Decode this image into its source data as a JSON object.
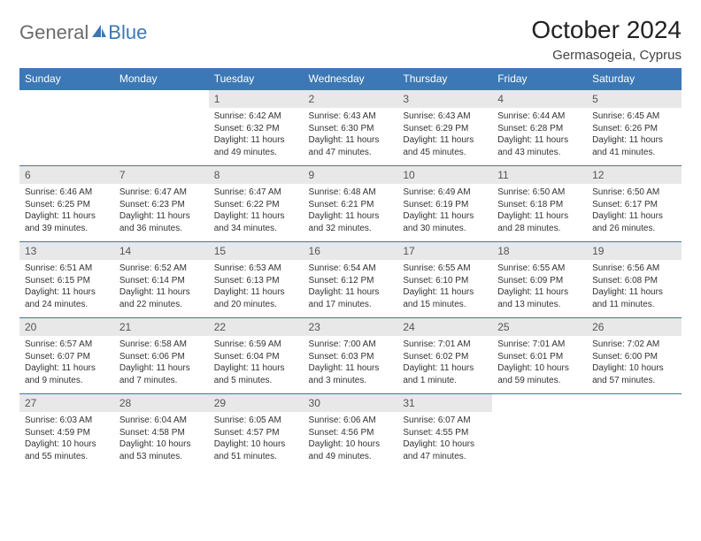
{
  "brand": {
    "word1": "General",
    "word2": "Blue",
    "color_gray": "#6b6b6b",
    "color_blue": "#3b78b5"
  },
  "title": "October 2024",
  "location": "Germasogeia, Cyprus",
  "header_bg": "#3b78b5",
  "header_fg": "#ffffff",
  "daynum_bg": "#e8e8e8",
  "row_border": "#3b78b5",
  "weekdays": [
    "Sunday",
    "Monday",
    "Tuesday",
    "Wednesday",
    "Thursday",
    "Friday",
    "Saturday"
  ],
  "first_weekday_index": 2,
  "days_in_month": 31,
  "days": {
    "1": {
      "sunrise": "6:42 AM",
      "sunset": "6:32 PM",
      "daylight": "11 hours and 49 minutes."
    },
    "2": {
      "sunrise": "6:43 AM",
      "sunset": "6:30 PM",
      "daylight": "11 hours and 47 minutes."
    },
    "3": {
      "sunrise": "6:43 AM",
      "sunset": "6:29 PM",
      "daylight": "11 hours and 45 minutes."
    },
    "4": {
      "sunrise": "6:44 AM",
      "sunset": "6:28 PM",
      "daylight": "11 hours and 43 minutes."
    },
    "5": {
      "sunrise": "6:45 AM",
      "sunset": "6:26 PM",
      "daylight": "11 hours and 41 minutes."
    },
    "6": {
      "sunrise": "6:46 AM",
      "sunset": "6:25 PM",
      "daylight": "11 hours and 39 minutes."
    },
    "7": {
      "sunrise": "6:47 AM",
      "sunset": "6:23 PM",
      "daylight": "11 hours and 36 minutes."
    },
    "8": {
      "sunrise": "6:47 AM",
      "sunset": "6:22 PM",
      "daylight": "11 hours and 34 minutes."
    },
    "9": {
      "sunrise": "6:48 AM",
      "sunset": "6:21 PM",
      "daylight": "11 hours and 32 minutes."
    },
    "10": {
      "sunrise": "6:49 AM",
      "sunset": "6:19 PM",
      "daylight": "11 hours and 30 minutes."
    },
    "11": {
      "sunrise": "6:50 AM",
      "sunset": "6:18 PM",
      "daylight": "11 hours and 28 minutes."
    },
    "12": {
      "sunrise": "6:50 AM",
      "sunset": "6:17 PM",
      "daylight": "11 hours and 26 minutes."
    },
    "13": {
      "sunrise": "6:51 AM",
      "sunset": "6:15 PM",
      "daylight": "11 hours and 24 minutes."
    },
    "14": {
      "sunrise": "6:52 AM",
      "sunset": "6:14 PM",
      "daylight": "11 hours and 22 minutes."
    },
    "15": {
      "sunrise": "6:53 AM",
      "sunset": "6:13 PM",
      "daylight": "11 hours and 20 minutes."
    },
    "16": {
      "sunrise": "6:54 AM",
      "sunset": "6:12 PM",
      "daylight": "11 hours and 17 minutes."
    },
    "17": {
      "sunrise": "6:55 AM",
      "sunset": "6:10 PM",
      "daylight": "11 hours and 15 minutes."
    },
    "18": {
      "sunrise": "6:55 AM",
      "sunset": "6:09 PM",
      "daylight": "11 hours and 13 minutes."
    },
    "19": {
      "sunrise": "6:56 AM",
      "sunset": "6:08 PM",
      "daylight": "11 hours and 11 minutes."
    },
    "20": {
      "sunrise": "6:57 AM",
      "sunset": "6:07 PM",
      "daylight": "11 hours and 9 minutes."
    },
    "21": {
      "sunrise": "6:58 AM",
      "sunset": "6:06 PM",
      "daylight": "11 hours and 7 minutes."
    },
    "22": {
      "sunrise": "6:59 AM",
      "sunset": "6:04 PM",
      "daylight": "11 hours and 5 minutes."
    },
    "23": {
      "sunrise": "7:00 AM",
      "sunset": "6:03 PM",
      "daylight": "11 hours and 3 minutes."
    },
    "24": {
      "sunrise": "7:01 AM",
      "sunset": "6:02 PM",
      "daylight": "11 hours and 1 minute."
    },
    "25": {
      "sunrise": "7:01 AM",
      "sunset": "6:01 PM",
      "daylight": "10 hours and 59 minutes."
    },
    "26": {
      "sunrise": "7:02 AM",
      "sunset": "6:00 PM",
      "daylight": "10 hours and 57 minutes."
    },
    "27": {
      "sunrise": "6:03 AM",
      "sunset": "4:59 PM",
      "daylight": "10 hours and 55 minutes."
    },
    "28": {
      "sunrise": "6:04 AM",
      "sunset": "4:58 PM",
      "daylight": "10 hours and 53 minutes."
    },
    "29": {
      "sunrise": "6:05 AM",
      "sunset": "4:57 PM",
      "daylight": "10 hours and 51 minutes."
    },
    "30": {
      "sunrise": "6:06 AM",
      "sunset": "4:56 PM",
      "daylight": "10 hours and 49 minutes."
    },
    "31": {
      "sunrise": "6:07 AM",
      "sunset": "4:55 PM",
      "daylight": "10 hours and 47 minutes."
    }
  },
  "labels": {
    "sunrise": "Sunrise:",
    "sunset": "Sunset:",
    "daylight": "Daylight:"
  },
  "fonts": {
    "title_pt": 28,
    "location_pt": 15,
    "weekday_pt": 12,
    "daynum_pt": 12,
    "body_pt": 10
  }
}
